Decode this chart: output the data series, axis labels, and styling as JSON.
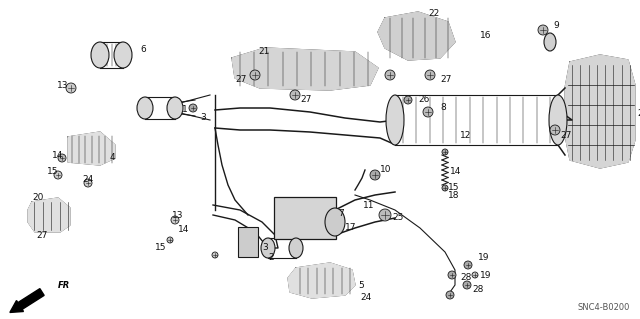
{
  "diagram_code": "SNC4-B0200",
  "bg_color": "#f0f0f0",
  "fig_width": 6.4,
  "fig_height": 3.19,
  "dpi": 100
}
